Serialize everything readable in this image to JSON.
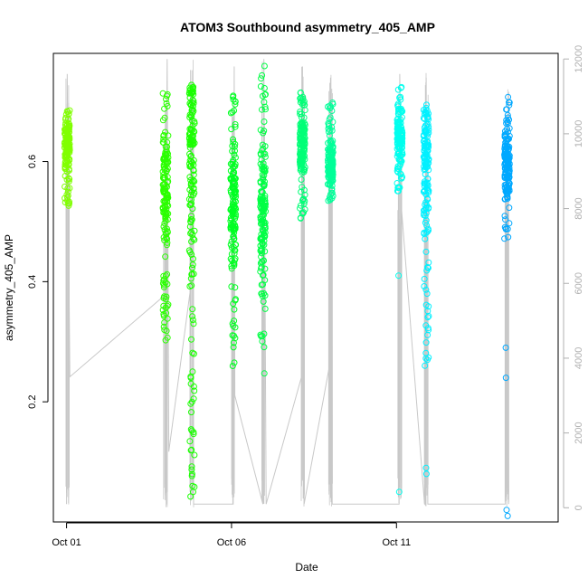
{
  "chart_data": {
    "type": "scatter",
    "title": "ATOM3 Southbound asymmetry_405_AMP",
    "xlabel": "Date",
    "ylabel": "asymmetry_405_AMP",
    "x_tick_labels": [
      "Oct 01",
      "Oct 06",
      "Oct 11"
    ],
    "x_tick_days": [
      1,
      6,
      11
    ],
    "xlim": [
      0.6,
      15.9
    ],
    "ylim": [
      0.0,
      0.78
    ],
    "y_ticks": [
      0.2,
      0.4,
      0.6
    ],
    "y_tick_labels": [
      "0.2",
      "0.4",
      "0.6"
    ],
    "y2lim": [
      -380,
      12150
    ],
    "y2_ticks": [
      0,
      2000,
      4000,
      6000,
      8000,
      10000,
      12000
    ],
    "y2_tick_labels": [
      "0",
      "2000",
      "4000",
      "6000",
      "8000",
      "10000",
      "12000"
    ],
    "grid": false,
    "clusters": [
      {
        "day": 1.02,
        "ymin": 0.52,
        "ymax": 0.69,
        "center": 0.63,
        "color": "#80ff00",
        "outliers": []
      },
      {
        "day": 4.0,
        "ymin": 0.29,
        "ymax": 0.72,
        "center": 0.55,
        "color": "#2bff00",
        "outliers": []
      },
      {
        "day": 4.8,
        "ymin": 0.04,
        "ymax": 0.73,
        "center": 0.62,
        "color": "#1aff00",
        "outliers": [
          0.05,
          0.06,
          0.12,
          0.23,
          0.24
        ]
      },
      {
        "day": 6.05,
        "ymin": 0.25,
        "ymax": 0.72,
        "center": 0.52,
        "color": "#00ff22",
        "outliers": []
      },
      {
        "day": 6.95,
        "ymin": 0.22,
        "ymax": 0.76,
        "center": 0.52,
        "color": "#00ff44",
        "outliers": []
      },
      {
        "day": 8.15,
        "ymin": 0.5,
        "ymax": 0.72,
        "center": 0.63,
        "color": "#00ff77",
        "outliers": []
      },
      {
        "day": 9.0,
        "ymin": 0.53,
        "ymax": 0.7,
        "center": 0.6,
        "color": "#00ff99",
        "outliers": []
      },
      {
        "day": 11.1,
        "ymin": 0.55,
        "ymax": 0.73,
        "center": 0.64,
        "color": "#00ffee",
        "outliers": [
          0.05,
          0.41
        ]
      },
      {
        "day": 11.9,
        "ymin": 0.27,
        "ymax": 0.72,
        "center": 0.6,
        "color": "#00f0ff",
        "outliers": [
          0.08,
          0.09,
          0.26,
          0.27,
          0.38
        ]
      },
      {
        "day": 14.35,
        "ymin": 0.47,
        "ymax": 0.71,
        "center": 0.6,
        "color": "#00a8ff",
        "outliers": [
          0.01,
          0.02,
          0.24,
          0.29
        ]
      }
    ],
    "secondary_series": {
      "name": "",
      "color": "#c8c8c8",
      "points": [
        [
          1.0,
          100
        ],
        [
          1.02,
          11600
        ],
        [
          1.1,
          3500
        ],
        [
          4.0,
          5700
        ],
        [
          4.05,
          12000
        ],
        [
          4.1,
          1500
        ],
        [
          4.78,
          6000
        ],
        [
          4.8,
          11700
        ],
        [
          4.85,
          100
        ],
        [
          6.05,
          100
        ],
        [
          6.08,
          11800
        ],
        [
          6.1,
          3000
        ],
        [
          6.95,
          100
        ],
        [
          6.98,
          12000
        ],
        [
          7.05,
          100
        ],
        [
          8.12,
          3500
        ],
        [
          8.15,
          11800
        ],
        [
          8.2,
          100
        ],
        [
          8.95,
          3700
        ],
        [
          9.0,
          11500
        ],
        [
          9.05,
          100
        ],
        [
          11.08,
          100
        ],
        [
          11.1,
          11600
        ],
        [
          11.15,
          8000
        ],
        [
          11.85,
          100
        ],
        [
          11.9,
          11500
        ],
        [
          11.95,
          100
        ],
        [
          14.3,
          100
        ],
        [
          14.35,
          10500
        ],
        [
          14.4,
          100
        ]
      ]
    }
  }
}
